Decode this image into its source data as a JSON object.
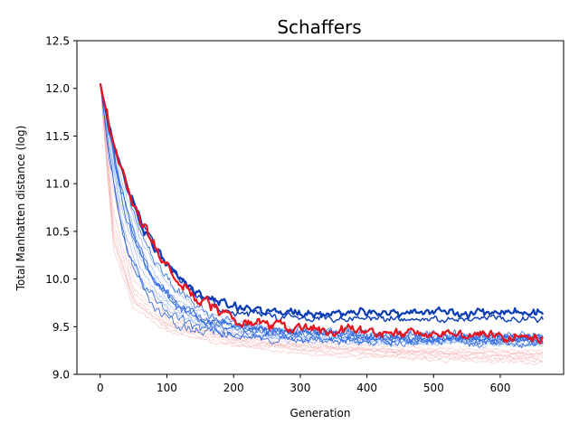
{
  "chart_data": {
    "type": "line",
    "title": "Schaffers",
    "xlabel": "Generation",
    "ylabel": "Total Manhatten distance (log)",
    "xlim": [
      -35,
      695
    ],
    "ylim": [
      9.0,
      12.5
    ],
    "x_ticks": [
      0,
      100,
      200,
      300,
      400,
      500,
      600
    ],
    "x_tick_labels": [
      "0",
      "100",
      "200",
      "300",
      "400",
      "500",
      "600"
    ],
    "y_ticks": [
      9.0,
      9.5,
      10.0,
      10.5,
      11.0,
      11.5,
      12.0,
      12.5
    ],
    "y_tick_labels": [
      "9.0",
      "9.5",
      "10.0",
      "10.5",
      "11.0",
      "11.5",
      "12.0",
      "12.5"
    ],
    "grid": false,
    "legend": "none",
    "generations": 665,
    "colors": {
      "blue_bold": "#0a3cb4",
      "red_bold": "#e8141e",
      "blue_thin": "#2a66e0",
      "light_blue": "#90b4f0",
      "light_red": "#f4a6a6"
    },
    "series": [
      {
        "color": "light_red",
        "width": 0.6,
        "opacity": 0.7,
        "noise": 0.012,
        "points": [
          [
            0,
            12.05
          ],
          [
            20,
            10.4
          ],
          [
            50,
            9.75
          ],
          [
            100,
            9.5
          ],
          [
            200,
            9.35
          ],
          [
            300,
            9.28
          ],
          [
            400,
            9.24
          ],
          [
            500,
            9.21
          ],
          [
            665,
            9.18
          ]
        ]
      },
      {
        "color": "light_red",
        "width": 0.6,
        "opacity": 0.7,
        "noise": 0.012,
        "points": [
          [
            0,
            12.05
          ],
          [
            20,
            10.6
          ],
          [
            50,
            9.85
          ],
          [
            100,
            9.55
          ],
          [
            200,
            9.38
          ],
          [
            300,
            9.3
          ],
          [
            400,
            9.25
          ],
          [
            500,
            9.22
          ],
          [
            665,
            9.2
          ]
        ]
      },
      {
        "color": "light_red",
        "width": 0.6,
        "opacity": 0.7,
        "noise": 0.012,
        "points": [
          [
            0,
            12.05
          ],
          [
            20,
            10.5
          ],
          [
            50,
            9.8
          ],
          [
            100,
            9.52
          ],
          [
            200,
            9.33
          ],
          [
            300,
            9.25
          ],
          [
            400,
            9.2
          ],
          [
            500,
            9.17
          ],
          [
            665,
            9.14
          ]
        ]
      },
      {
        "color": "light_red",
        "width": 0.6,
        "opacity": 0.7,
        "noise": 0.012,
        "points": [
          [
            0,
            12.05
          ],
          [
            20,
            10.9
          ],
          [
            50,
            10.0
          ],
          [
            100,
            9.62
          ],
          [
            200,
            9.4
          ],
          [
            300,
            9.32
          ],
          [
            400,
            9.27
          ],
          [
            500,
            9.24
          ],
          [
            665,
            9.22
          ]
        ]
      },
      {
        "color": "light_red",
        "width": 0.6,
        "opacity": 0.7,
        "noise": 0.012,
        "points": [
          [
            0,
            12.05
          ],
          [
            20,
            10.3
          ],
          [
            50,
            9.7
          ],
          [
            100,
            9.45
          ],
          [
            200,
            9.3
          ],
          [
            300,
            9.22
          ],
          [
            400,
            9.18
          ],
          [
            500,
            9.15
          ],
          [
            665,
            9.12
          ]
        ]
      },
      {
        "color": "light_red",
        "width": 0.6,
        "opacity": 0.7,
        "noise": 0.012,
        "points": [
          [
            0,
            12.05
          ],
          [
            20,
            11.0
          ],
          [
            50,
            10.1
          ],
          [
            100,
            9.7
          ],
          [
            200,
            9.45
          ],
          [
            300,
            9.35
          ],
          [
            400,
            9.3
          ],
          [
            500,
            9.27
          ],
          [
            665,
            9.25
          ]
        ]
      },
      {
        "color": "light_red",
        "width": 0.6,
        "opacity": 0.7,
        "noise": 0.012,
        "points": [
          [
            0,
            12.05
          ],
          [
            20,
            10.7
          ],
          [
            50,
            9.9
          ],
          [
            100,
            9.58
          ],
          [
            200,
            9.36
          ],
          [
            300,
            9.29
          ],
          [
            400,
            9.26
          ],
          [
            500,
            9.23
          ],
          [
            665,
            9.21
          ]
        ]
      },
      {
        "color": "light_red",
        "width": 0.6,
        "opacity": 0.7,
        "noise": 0.012,
        "points": [
          [
            0,
            12.05
          ],
          [
            20,
            10.45
          ],
          [
            50,
            9.78
          ],
          [
            100,
            9.48
          ],
          [
            200,
            9.32
          ],
          [
            300,
            9.26
          ],
          [
            400,
            9.22
          ],
          [
            500,
            9.19
          ],
          [
            665,
            9.16
          ]
        ]
      },
      {
        "color": "light_blue",
        "width": 0.7,
        "opacity": 0.9,
        "noise": 0.02,
        "points": [
          [
            0,
            12.05
          ],
          [
            30,
            10.9
          ],
          [
            60,
            10.2
          ],
          [
            100,
            9.8
          ],
          [
            150,
            9.55
          ],
          [
            250,
            9.42
          ],
          [
            400,
            9.36
          ],
          [
            665,
            9.32
          ]
        ]
      },
      {
        "color": "light_blue",
        "width": 0.7,
        "opacity": 0.9,
        "noise": 0.02,
        "points": [
          [
            0,
            12.05
          ],
          [
            30,
            11.0
          ],
          [
            60,
            10.3
          ],
          [
            100,
            9.85
          ],
          [
            150,
            9.6
          ],
          [
            250,
            9.45
          ],
          [
            400,
            9.4
          ],
          [
            665,
            9.37
          ]
        ]
      },
      {
        "color": "light_blue",
        "width": 0.7,
        "opacity": 0.9,
        "noise": 0.02,
        "points": [
          [
            0,
            12.05
          ],
          [
            30,
            10.8
          ],
          [
            60,
            10.1
          ],
          [
            100,
            9.75
          ],
          [
            150,
            9.52
          ],
          [
            250,
            9.4
          ],
          [
            400,
            9.35
          ],
          [
            665,
            9.33
          ]
        ]
      },
      {
        "color": "light_blue",
        "width": 0.7,
        "opacity": 0.9,
        "noise": 0.02,
        "points": [
          [
            0,
            12.05
          ],
          [
            30,
            11.1
          ],
          [
            60,
            10.4
          ],
          [
            100,
            9.95
          ],
          [
            150,
            9.65
          ],
          [
            250,
            9.48
          ],
          [
            400,
            9.42
          ],
          [
            665,
            9.38
          ]
        ]
      },
      {
        "color": "light_blue",
        "width": 0.7,
        "opacity": 0.9,
        "noise": 0.02,
        "points": [
          [
            0,
            12.05
          ],
          [
            30,
            10.7
          ],
          [
            60,
            10.0
          ],
          [
            100,
            9.7
          ],
          [
            150,
            9.5
          ],
          [
            250,
            9.38
          ],
          [
            400,
            9.34
          ],
          [
            665,
            9.31
          ]
        ]
      },
      {
        "color": "blue_thin",
        "width": 0.8,
        "opacity": 1,
        "noise": 0.03,
        "points": [
          [
            0,
            12.05
          ],
          [
            15,
            11.2
          ],
          [
            30,
            10.6
          ],
          [
            50,
            10.1
          ],
          [
            80,
            9.7
          ],
          [
            120,
            9.5
          ],
          [
            200,
            9.42
          ],
          [
            300,
            9.38
          ],
          [
            450,
            9.35
          ],
          [
            665,
            9.33
          ]
        ]
      },
      {
        "color": "blue_thin",
        "width": 0.8,
        "opacity": 1,
        "noise": 0.03,
        "points": [
          [
            0,
            12.05
          ],
          [
            20,
            11.3
          ],
          [
            40,
            10.6
          ],
          [
            70,
            10.1
          ],
          [
            110,
            9.75
          ],
          [
            160,
            9.55
          ],
          [
            250,
            9.45
          ],
          [
            400,
            9.4
          ],
          [
            665,
            9.38
          ]
        ]
      },
      {
        "color": "blue_thin",
        "width": 0.8,
        "opacity": 1,
        "noise": 0.03,
        "points": [
          [
            0,
            12.05
          ],
          [
            25,
            11.1
          ],
          [
            50,
            10.45
          ],
          [
            80,
            10.0
          ],
          [
            120,
            9.7
          ],
          [
            180,
            9.5
          ],
          [
            300,
            9.42
          ],
          [
            450,
            9.38
          ],
          [
            665,
            9.36
          ]
        ]
      },
      {
        "color": "blue_thin",
        "width": 0.8,
        "opacity": 1,
        "noise": 0.03,
        "points": [
          [
            0,
            12.05
          ],
          [
            20,
            11.0
          ],
          [
            40,
            10.3
          ],
          [
            70,
            9.9
          ],
          [
            100,
            9.65
          ],
          [
            150,
            9.48
          ],
          [
            220,
            9.4
          ],
          [
            350,
            9.36
          ],
          [
            665,
            9.34
          ]
        ]
      },
      {
        "color": "blue_thin",
        "width": 0.8,
        "opacity": 1,
        "noise": 0.03,
        "points": [
          [
            0,
            12.05
          ],
          [
            20,
            11.4
          ],
          [
            50,
            10.7
          ],
          [
            80,
            10.2
          ],
          [
            120,
            9.85
          ],
          [
            170,
            9.6
          ],
          [
            250,
            9.48
          ],
          [
            400,
            9.43
          ],
          [
            665,
            9.4
          ]
        ]
      },
      {
        "color": "blue_thin",
        "width": 0.8,
        "opacity": 1,
        "noise": 0.03,
        "points": [
          [
            0,
            12.05
          ],
          [
            30,
            11.0
          ],
          [
            55,
            10.35
          ],
          [
            85,
            9.95
          ],
          [
            120,
            9.7
          ],
          [
            160,
            9.55
          ],
          [
            250,
            9.46
          ],
          [
            400,
            9.41
          ],
          [
            665,
            9.38
          ]
        ]
      },
      {
        "color": "blue_bold",
        "width": 2.2,
        "opacity": 1,
        "noise": 0.03,
        "points": [
          [
            0,
            12.05
          ],
          [
            20,
            11.4
          ],
          [
            40,
            10.95
          ],
          [
            60,
            10.6
          ],
          [
            80,
            10.35
          ],
          [
            100,
            10.15
          ],
          [
            120,
            10.0
          ],
          [
            140,
            9.88
          ],
          [
            160,
            9.8
          ],
          [
            180,
            9.74
          ],
          [
            200,
            9.7
          ],
          [
            250,
            9.66
          ],
          [
            300,
            9.65
          ],
          [
            400,
            9.64
          ],
          [
            500,
            9.64
          ],
          [
            600,
            9.64
          ],
          [
            665,
            9.65
          ]
        ]
      },
      {
        "color": "blue_bold",
        "width": 1.4,
        "opacity": 1,
        "noise": 0.025,
        "points": [
          [
            0,
            12.05
          ],
          [
            20,
            11.42
          ],
          [
            40,
            10.97
          ],
          [
            60,
            10.62
          ],
          [
            80,
            10.36
          ],
          [
            100,
            10.15
          ],
          [
            120,
            9.99
          ],
          [
            140,
            9.86
          ],
          [
            160,
            9.77
          ],
          [
            180,
            9.7
          ],
          [
            200,
            9.66
          ],
          [
            250,
            9.61
          ],
          [
            300,
            9.59
          ],
          [
            400,
            9.58
          ],
          [
            500,
            9.58
          ],
          [
            600,
            9.58
          ],
          [
            665,
            9.58
          ]
        ]
      },
      {
        "color": "red_bold",
        "width": 2.2,
        "opacity": 1,
        "noise": 0.035,
        "points": [
          [
            0,
            12.05
          ],
          [
            20,
            11.4
          ],
          [
            40,
            10.95
          ],
          [
            60,
            10.6
          ],
          [
            80,
            10.35
          ],
          [
            100,
            10.15
          ],
          [
            120,
            9.97
          ],
          [
            140,
            9.84
          ],
          [
            160,
            9.74
          ],
          [
            180,
            9.66
          ],
          [
            200,
            9.6
          ],
          [
            250,
            9.53
          ],
          [
            300,
            9.48
          ],
          [
            350,
            9.46
          ],
          [
            400,
            9.44
          ],
          [
            500,
            9.42
          ],
          [
            600,
            9.41
          ],
          [
            665,
            9.38
          ]
        ]
      }
    ]
  }
}
